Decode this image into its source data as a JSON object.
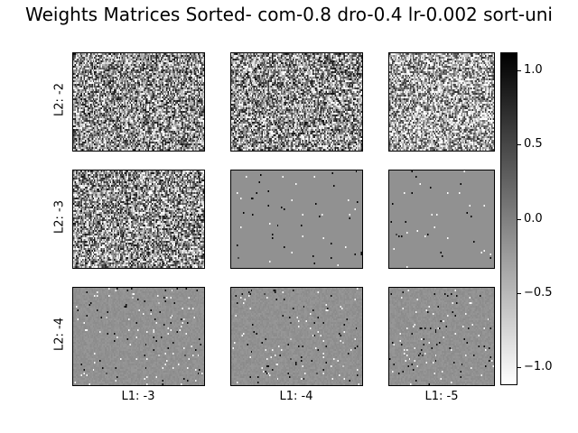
{
  "chart_data": {
    "type": "heatmap",
    "title": "Weights Matrices Sorted- com-0.8 dro-0.4 lr-0.002 sort-uni",
    "row_labels": [
      "L2: -2",
      "L2: -3",
      "L2: -4"
    ],
    "col_labels": [
      "L1: -3",
      "L1: -4",
      "L1: -5"
    ],
    "colormap": "gray_r",
    "colorbar": {
      "range": [
        -1.12,
        1.12
      ],
      "ticks": [
        1.0,
        0.5,
        0.0,
        -0.5,
        -1.0
      ],
      "tick_labels": [
        "1.0",
        "0.5",
        "0.0",
        "−0.5",
        "−1.0"
      ]
    },
    "panels": [
      {
        "row": 0,
        "col": 0,
        "pattern": "dense-noise",
        "dark_level": 0.5
      },
      {
        "row": 0,
        "col": 1,
        "pattern": "dense-noise",
        "dark_level": 0.5
      },
      {
        "row": 0,
        "col": 2,
        "pattern": "dense-noise",
        "dark_level": 0.45
      },
      {
        "row": 1,
        "col": 0,
        "pattern": "dense-noise",
        "dark_level": 0.5
      },
      {
        "row": 1,
        "col": 1,
        "pattern": "sparse-points",
        "density": 0.008
      },
      {
        "row": 1,
        "col": 2,
        "pattern": "sparse-points",
        "density": 0.008
      },
      {
        "row": 2,
        "col": 0,
        "pattern": "sparse-textured",
        "density": 0.025
      },
      {
        "row": 2,
        "col": 1,
        "pattern": "sparse-textured",
        "density": 0.025
      },
      {
        "row": 2,
        "col": 2,
        "pattern": "sparse-textured",
        "density": 0.025
      }
    ]
  }
}
